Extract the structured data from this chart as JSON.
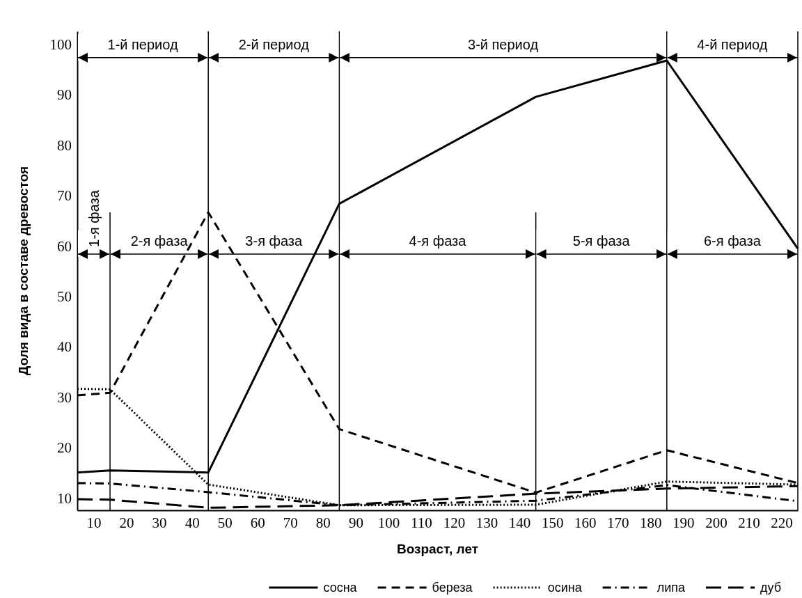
{
  "chart_data": {
    "type": "line",
    "xlabel": "Возраст, лет",
    "ylabel": "Доля вида в составе древостоя",
    "x": [
      5,
      15,
      45,
      85,
      145,
      185,
      225
    ],
    "xlim": [
      5,
      225
    ],
    "xticks": [
      10,
      20,
      30,
      40,
      50,
      60,
      70,
      80,
      90,
      100,
      110,
      120,
      130,
      140,
      150,
      160,
      170,
      180,
      190,
      200,
      210,
      220
    ],
    "ylim": [
      7.5,
      102.5
    ],
    "yticks": [
      10,
      20,
      30,
      40,
      50,
      60,
      70,
      80,
      90,
      100
    ],
    "grid": false,
    "legend": "bottom",
    "marker": "none",
    "series": [
      {
        "name": "сосна",
        "color": "#000000",
        "line_style": "solid",
        "values": [
          15,
          15.4,
          15,
          68.3,
          89.5,
          96.7,
          59.4
        ]
      },
      {
        "name": "береза",
        "color": "#000000",
        "line_style": "dashed",
        "values": [
          30.3,
          30.8,
          66.6,
          23.6,
          11,
          19.4,
          12.9
        ]
      },
      {
        "name": "осина",
        "color": "#000000",
        "line_style": "dotted",
        "values": [
          31.6,
          31.5,
          12.6,
          8.5,
          8.6,
          13.2,
          12.6
        ]
      },
      {
        "name": "липа",
        "color": "#000000",
        "line_style": "dashdot",
        "values": [
          12.9,
          12.8,
          11.1,
          8.5,
          9.4,
          12.5,
          9.3
        ]
      },
      {
        "name": "дуб",
        "color": "#000000",
        "line_style": "longdash",
        "values": [
          9.7,
          9.6,
          8,
          8.5,
          10.8,
          11.8,
          12.3
        ]
      }
    ],
    "ref_lines": [
      {
        "axis": "x",
        "value": 15
      },
      {
        "axis": "x",
        "value": 45
      },
      {
        "axis": "x",
        "value": 85
      },
      {
        "axis": "x",
        "value": 145
      },
      {
        "axis": "x",
        "value": 185
      },
      {
        "axis": "x",
        "value": 225
      }
    ],
    "bands": [
      {
        "axis": "x",
        "from": 5,
        "to": 45,
        "label": "1-й период"
      },
      {
        "axis": "x",
        "from": 45,
        "to": 85,
        "label": "2-й период"
      },
      {
        "axis": "x",
        "from": 85,
        "to": 185,
        "label": "3-й период"
      },
      {
        "axis": "x",
        "from": 185,
        "to": 225,
        "label": "4-й период"
      },
      {
        "axis": "x",
        "from": 5,
        "to": 15,
        "label": "1-я фаза"
      },
      {
        "axis": "x",
        "from": 15,
        "to": 45,
        "label": "2-я фаза"
      },
      {
        "axis": "x",
        "from": 45,
        "to": 85,
        "label": "3-я фаза"
      },
      {
        "axis": "x",
        "from": 85,
        "to": 145,
        "label": "4-я фаза"
      },
      {
        "axis": "x",
        "from": 145,
        "to": 185,
        "label": "5-я фаза"
      },
      {
        "axis": "x",
        "from": 185,
        "to": 225,
        "label": "6-я фаза"
      }
    ]
  }
}
